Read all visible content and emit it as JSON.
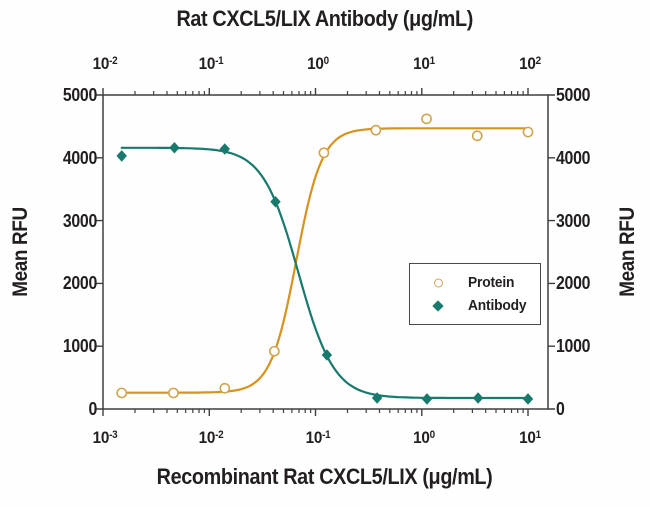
{
  "chart_data": {
    "type": "scatter",
    "title": "Rat CXCL5/LIX Antibody (μg/mL)",
    "x_top": {
      "label": "Rat CXCL5/LIX Antibody (μg/mL)",
      "scale": "log",
      "tick_exponents": [
        -2,
        -1,
        0,
        1,
        2
      ],
      "range_log": [
        -2,
        2.19
      ]
    },
    "x_bottom": {
      "label": "Recombinant Rat CXCL5/LIX (μg/mL)",
      "scale": "log",
      "tick_exponents": [
        -3,
        -2,
        -1,
        0,
        1
      ],
      "range_log": [
        -3,
        1.19
      ]
    },
    "y_left": {
      "label": "Mean RFU",
      "ticks": [
        0,
        1000,
        2000,
        3000,
        4000,
        5000
      ],
      "range": [
        0,
        5000
      ]
    },
    "y_right": {
      "label": "Mean RFU",
      "ticks": [
        0,
        1000,
        2000,
        3000,
        4000,
        5000
      ],
      "range": [
        0,
        5000
      ]
    },
    "grid": false,
    "legend_position": "inside-right",
    "series": [
      {
        "name": "Protein",
        "axis": "bottom",
        "marker": "open-circle",
        "line_color": "#d6931d",
        "marker_color": "#cfa553",
        "x": [
          0.0015,
          0.0046,
          0.014,
          0.041,
          0.12,
          0.37,
          1.11,
          3.33,
          10
        ],
        "y": [
          255,
          255,
          330,
          920,
          4080,
          4440,
          4620,
          4350,
          4410
        ],
        "fit": {
          "model": "4PL",
          "bottom": 260,
          "top": 4470,
          "log_ec50": -1.18,
          "hill": 3.6
        }
      },
      {
        "name": "Antibody",
        "axis": "top",
        "marker": "filled-diamond",
        "line_color": "#177a6d",
        "marker_color": "#177a6d",
        "x": [
          0.015,
          0.047,
          0.14,
          0.42,
          1.28,
          3.8,
          11.2,
          33.9,
          100
        ],
        "y": [
          4030,
          4160,
          4140,
          3300,
          860,
          175,
          160,
          175,
          160
        ],
        "fit": {
          "model": "4PL",
          "bottom": 175,
          "top": 4160,
          "log_ec50": -0.16,
          "hill": -2.6
        }
      }
    ],
    "legend": {
      "items": [
        {
          "label": "Protein",
          "marker": "open-circle"
        },
        {
          "label": "Antibody",
          "marker": "filled-diamond"
        }
      ]
    },
    "style": {
      "frame_color": "#3f3f3f",
      "text_color": "#231f20",
      "background": "#fefefe"
    }
  }
}
